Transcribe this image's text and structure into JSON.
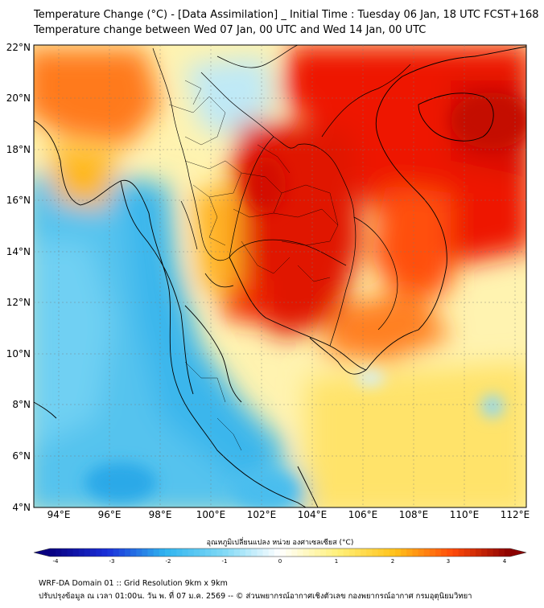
{
  "title_line1": "Temperature Change (°C) - [Data Assimilation] _ Initial Time : Tuesday 06 Jan, 18 UTC FCST+168",
  "title_line2": "Temperature change between Wed 07 Jan, 00 UTC and Wed 14 Jan, 00 UTC",
  "lat_labels": [
    "22°N",
    "20°N",
    "18°N",
    "16°N",
    "14°N",
    "12°N",
    "10°N",
    "8°N",
    "6°N",
    "4°N"
  ],
  "lon_labels": [
    "94°E",
    "96°E",
    "98°E",
    "100°E",
    "102°E",
    "104°E",
    "106°E",
    "108°E",
    "110°E",
    "112°E"
  ],
  "colorbar": {
    "title": "อุณหภูมิเปลี่ยนแปลง หน่วย องศาเซลเซียส (°C)",
    "ticks": [
      "-4",
      "-3",
      "-2",
      "-1",
      "0",
      "1",
      "2",
      "3",
      "4"
    ],
    "colors": {
      "minus4": "#080080",
      "minus3": "#1a2fd9",
      "minus2": "#2fb4ef",
      "minus1": "#7ed8f5",
      "zero": "#ffffff",
      "plus1": "#fff07a",
      "plus2": "#ffc21a",
      "plus3": "#ff4a0a",
      "plus4": "#8a0000"
    }
  },
  "footer_line1": "WRF-DA Domain 01 :: Grid Resolution 9km x 9km",
  "footer_line2": "ปรับปรุงข้อมูล ณ เวลา 01:00น. วัน พ. ที่ 07 ม.ค. 2569 -- © ส่วนพยากรณ์อากาศเชิงตัวเลข กองพยากรณ์อากาศ กรมอุตุนิยมวิทยา"
}
